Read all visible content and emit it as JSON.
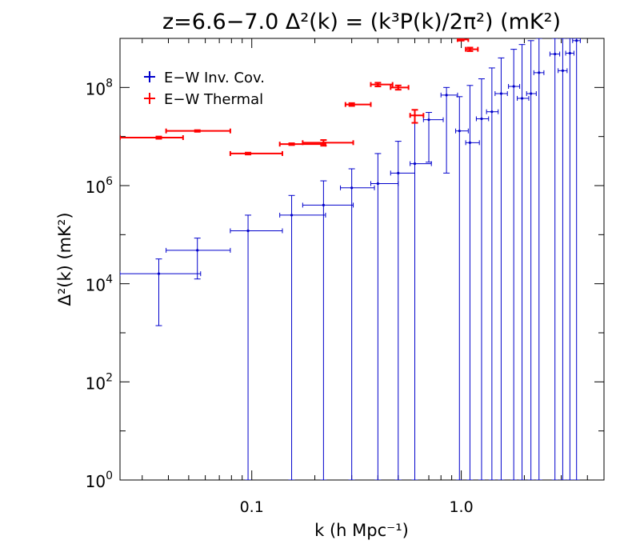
{
  "chart_data": {
    "type": "scatter",
    "title": "z=6.6−7.0  Δ²(k) = (k³P(k)/2π²) (mK²)",
    "xlabel": "k (h Mpc⁻¹)",
    "ylabel": "Δ²(k) (mK²)",
    "xscale": "log",
    "yscale": "log",
    "xlim": [
      0.0235,
      4.8
    ],
    "ylim": [
      1,
      1000000000.0
    ],
    "x_tick_labels": [
      {
        "value": 0.1,
        "label": "0.1"
      },
      {
        "value": 1.0,
        "label": "1.0"
      }
    ],
    "y_tick_labels": [
      {
        "value": 1,
        "base": "10",
        "exp": "0"
      },
      {
        "value": 100,
        "base": "10",
        "exp": "2"
      },
      {
        "value": 10000,
        "base": "10",
        "exp": "4"
      },
      {
        "value": 1000000,
        "base": "10",
        "exp": "6"
      },
      {
        "value": 100000000,
        "base": "10",
        "exp": "8"
      }
    ],
    "legend_position": "top-left",
    "series": [
      {
        "name": "E−W Inv. Cov.",
        "color": "#0000cc",
        "points": [
          {
            "k": 0.036,
            "klo": 0.0235,
            "khi": 0.057,
            "y": 16000.0,
            "ylo": 1400.0,
            "yhi": 32000.0
          },
          {
            "k": 0.055,
            "klo": 0.039,
            "khi": 0.079,
            "y": 48000.0,
            "ylo": 12500.0,
            "yhi": 85000.0
          },
          {
            "k": 0.096,
            "klo": 0.079,
            "khi": 0.14,
            "y": 120000.0,
            "ylo": 1.0,
            "yhi": 250000.0
          },
          {
            "k": 0.155,
            "klo": 0.136,
            "khi": 0.225,
            "y": 250000.0,
            "ylo": 1.0,
            "yhi": 630000.0
          },
          {
            "k": 0.22,
            "klo": 0.175,
            "khi": 0.305,
            "y": 400000.0,
            "ylo": 1.0,
            "yhi": 1250000.0
          },
          {
            "k": 0.3,
            "klo": 0.265,
            "khi": 0.385,
            "y": 900000.0,
            "ylo": 1.0,
            "yhi": 2200000.0
          },
          {
            "k": 0.4,
            "klo": 0.37,
            "khi": 0.5,
            "y": 1100000.0,
            "ylo": 1.0,
            "yhi": 4500000.0
          },
          {
            "k": 0.5,
            "klo": 0.46,
            "khi": 0.6,
            "y": 1800000.0,
            "ylo": 1.0,
            "yhi": 8000000.0
          },
          {
            "k": 0.6,
            "klo": 0.57,
            "khi": 0.72,
            "y": 2800000.0,
            "ylo": 1.0,
            "yhi": 35000000.0
          },
          {
            "k": 0.7,
            "klo": 0.66,
            "khi": 0.82,
            "y": 22000000.0,
            "ylo": 3000000.0,
            "yhi": 31000000.0
          },
          {
            "k": 0.85,
            "klo": 0.8,
            "khi": 0.96,
            "y": 70000000.0,
            "ylo": 1800000.0,
            "yhi": 100000000.0
          },
          {
            "k": 0.98,
            "klo": 0.94,
            "khi": 1.08,
            "y": 13000000.0,
            "ylo": 1.0,
            "yhi": 65000000.0
          },
          {
            "k": 1.1,
            "klo": 1.05,
            "khi": 1.22,
            "y": 7500000.0,
            "ylo": 1.0,
            "yhi": 110000000.0
          },
          {
            "k": 1.25,
            "klo": 1.18,
            "khi": 1.35,
            "y": 23000000.0,
            "ylo": 1.0,
            "yhi": 150000000.0
          },
          {
            "k": 1.4,
            "klo": 1.32,
            "khi": 1.5,
            "y": 32000000.0,
            "ylo": 1.0,
            "yhi": 250000000.0
          },
          {
            "k": 1.55,
            "klo": 1.45,
            "khi": 1.66,
            "y": 75000000.0,
            "ylo": 1.0,
            "yhi": 400000000.0
          },
          {
            "k": 1.78,
            "klo": 1.68,
            "khi": 1.9,
            "y": 105000000.0,
            "ylo": 1.0,
            "yhi": 600000000.0
          },
          {
            "k": 1.95,
            "klo": 1.85,
            "khi": 2.1,
            "y": 60000000.0,
            "ylo": 1.0,
            "yhi": 750000000.0
          },
          {
            "k": 2.15,
            "klo": 2.05,
            "khi": 2.28,
            "y": 75000000.0,
            "ylo": 1.0,
            "yhi": 900000000.0
          },
          {
            "k": 2.35,
            "klo": 2.22,
            "khi": 2.48,
            "y": 200000000.0,
            "ylo": 1.0,
            "yhi": 1000000000.0
          },
          {
            "k": 2.8,
            "klo": 2.65,
            "khi": 2.95,
            "y": 480000000.0,
            "ylo": 1.0,
            "yhi": 1000000000.0
          },
          {
            "k": 3.05,
            "klo": 2.9,
            "khi": 3.2,
            "y": 220000000.0,
            "ylo": 1.0,
            "yhi": 1000000000.0
          },
          {
            "k": 3.3,
            "klo": 3.15,
            "khi": 3.45,
            "y": 500000000.0,
            "ylo": 1.0,
            "yhi": 1000000000.0
          },
          {
            "k": 3.55,
            "klo": 3.4,
            "khi": 3.7,
            "y": 900000000.0,
            "ylo": 1.0,
            "yhi": 1000000000.0
          }
        ]
      },
      {
        "name": "E−W Thermal",
        "color": "#ff0000",
        "points": [
          {
            "k": 0.036,
            "klo": 0.0235,
            "khi": 0.047,
            "y": 9500000.0,
            "ylo": 9000000.0,
            "yhi": 10000000.0
          },
          {
            "k": 0.055,
            "klo": 0.039,
            "khi": 0.079,
            "y": 13000000.0,
            "ylo": 12500000.0,
            "yhi": 13500000.0
          },
          {
            "k": 0.096,
            "klo": 0.079,
            "khi": 0.14,
            "y": 4500000.0,
            "ylo": 4300000.0,
            "yhi": 4700000.0
          },
          {
            "k": 0.155,
            "klo": 0.136,
            "khi": 0.225,
            "y": 7000000.0,
            "ylo": 6700000.0,
            "yhi": 7300000.0
          },
          {
            "k": 0.22,
            "klo": 0.175,
            "khi": 0.305,
            "y": 7500000.0,
            "ylo": 6500000.0,
            "yhi": 8500000.0
          },
          {
            "k": 0.3,
            "klo": 0.28,
            "khi": 0.37,
            "y": 45000000.0,
            "ylo": 42000000.0,
            "yhi": 48000000.0
          },
          {
            "k": 0.4,
            "klo": 0.37,
            "khi": 0.47,
            "y": 115000000.0,
            "ylo": 105000000.0,
            "yhi": 125000000.0
          },
          {
            "k": 0.5,
            "klo": 0.46,
            "khi": 0.56,
            "y": 100000000.0,
            "ylo": 90000000.0,
            "yhi": 110000000.0
          },
          {
            "k": 0.6,
            "klo": 0.57,
            "khi": 0.66,
            "y": 27000000.0,
            "ylo": 19000000.0,
            "yhi": 35000000.0
          },
          {
            "k": 1.0,
            "klo": 0.96,
            "khi": 1.08,
            "y": 950000000.0,
            "ylo": 900000000.0,
            "yhi": 1000000000.0
          },
          {
            "k": 1.1,
            "klo": 1.05,
            "khi": 1.2,
            "y": 600000000.0,
            "ylo": 550000000.0,
            "yhi": 650000000.0
          }
        ]
      }
    ]
  }
}
